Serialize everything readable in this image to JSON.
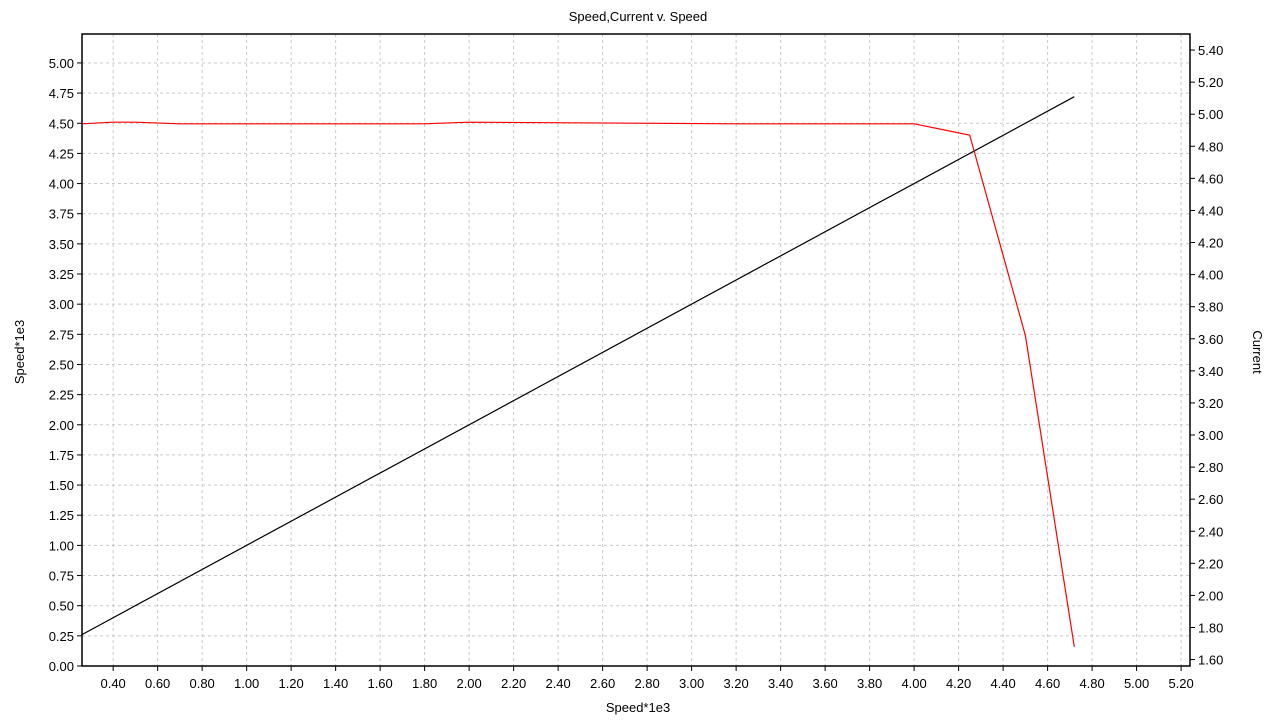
{
  "chart_data": {
    "type": "line",
    "title": "Speed,Current v. Speed",
    "xlabel": "Speed*1e3",
    "ylabel_left": "Speed*1e3",
    "ylabel_right": "Current",
    "xlim": [
      0.26,
      5.24
    ],
    "ylim_left": [
      0.0,
      5.24
    ],
    "ylim_right": [
      1.56,
      5.5
    ],
    "x_ticks": [
      "0.40",
      "0.60",
      "0.80",
      "1.00",
      "1.20",
      "1.40",
      "1.60",
      "1.80",
      "2.00",
      "2.20",
      "2.40",
      "2.60",
      "2.80",
      "3.00",
      "3.20",
      "3.40",
      "3.60",
      "3.80",
      "4.00",
      "4.20",
      "4.40",
      "4.60",
      "4.80",
      "5.00",
      "5.20"
    ],
    "y_left_ticks": [
      "0.00",
      "0.25",
      "0.50",
      "0.75",
      "1.00",
      "1.25",
      "1.50",
      "1.75",
      "2.00",
      "2.25",
      "2.50",
      "2.75",
      "3.00",
      "3.25",
      "3.50",
      "3.75",
      "4.00",
      "4.25",
      "4.50",
      "4.75",
      "5.00"
    ],
    "y_right_ticks": [
      "1.60",
      "1.80",
      "2.00",
      "2.20",
      "2.40",
      "2.60",
      "2.80",
      "3.00",
      "3.20",
      "3.40",
      "3.60",
      "3.80",
      "4.00",
      "4.20",
      "4.40",
      "4.60",
      "4.80",
      "5.00",
      "5.20",
      "5.40"
    ],
    "grid": true,
    "series": [
      {
        "axis": "left",
        "color": "#000000",
        "x": [
          0.26,
          4.72
        ],
        "y": [
          0.26,
          4.72
        ]
      },
      {
        "axis": "right",
        "color": "#ff0000",
        "x": [
          0.26,
          0.4,
          0.5,
          0.7,
          0.8,
          1.0,
          1.8,
          2.0,
          3.2,
          4.0,
          4.25,
          4.5,
          4.72
        ],
        "y": [
          4.94,
          4.95,
          4.95,
          4.94,
          4.94,
          4.94,
          4.94,
          4.95,
          4.94,
          4.94,
          4.87,
          3.62,
          1.68
        ]
      }
    ]
  }
}
